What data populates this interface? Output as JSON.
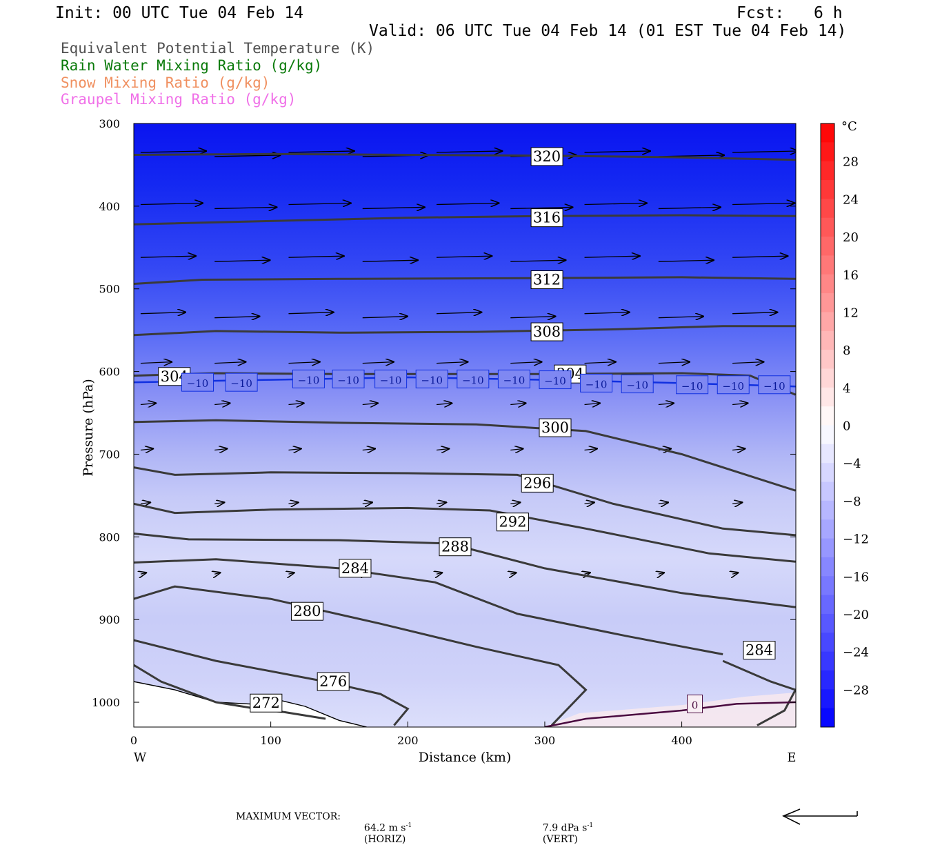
{
  "header": {
    "init": "Init: 00 UTC Tue 04 Feb 14",
    "fcst_label": "Fcst:",
    "fcst_value": "6 h",
    "valid": "Valid: 06 UTC Tue 04 Feb 14 (01 EST Tue 04 Feb 14)"
  },
  "legend": [
    {
      "text": "Equivalent Potential Temperature (K)",
      "color": "#505050"
    },
    {
      "text": "Rain Water Mixing Ratio (g/kg)",
      "color": "#0a7a0a"
    },
    {
      "text": "Snow Mixing Ratio (g/kg)",
      "color": "#f09060"
    },
    {
      "text": "Graupel Mixing Ratio (g/kg)",
      "color": "#f070e8"
    }
  ],
  "footer": {
    "max_vector_label": "MAXIMUM VECTOR:",
    "horiz_value": "64.2 m s",
    "horiz_unit": "(HORIZ)",
    "vert_value": "7.9 dPa s",
    "vert_unit": "(VERT)",
    "exponent": "-1"
  },
  "chart_data": {
    "type": "contour",
    "xlabel": "Distance (km)",
    "ylabel": "Pressure (hPa)",
    "xlim": [
      0,
      483
    ],
    "ylim": [
      1030,
      300
    ],
    "x_ticks": [
      0,
      100,
      200,
      300,
      400
    ],
    "y_ticks": [
      300,
      400,
      500,
      600,
      700,
      800,
      900,
      1000
    ],
    "x_end_labels": {
      "left": "W",
      "right": "E"
    },
    "colorbar": {
      "unit": "°C",
      "tick_labels": [
        "28",
        "24",
        "20",
        "16",
        "12",
        "8",
        "4",
        "0",
        "−4",
        "−8",
        "−12",
        "−16",
        "−20",
        "−24",
        "−28"
      ],
      "tick_values": [
        28,
        24,
        20,
        16,
        12,
        8,
        4,
        0,
        -4,
        -8,
        -12,
        -16,
        -20,
        -24,
        -28
      ],
      "range": [
        -32,
        32
      ],
      "colors": {
        "warm": "#ff0000",
        "neutral": "#ffffff",
        "cold": "#0000ff"
      }
    },
    "theta_e_contours": [
      {
        "label": "320",
        "points": [
          [
            0,
            338
          ],
          [
            100,
            337
          ],
          [
            200,
            338
          ],
          [
            300,
            339
          ],
          [
            400,
            341
          ],
          [
            483,
            344
          ]
        ],
        "label_at": [
          290,
          340
        ]
      },
      {
        "label": "316",
        "points": [
          [
            0,
            422
          ],
          [
            100,
            418
          ],
          [
            200,
            414
          ],
          [
            300,
            412
          ],
          [
            400,
            411
          ],
          [
            483,
            412
          ]
        ],
        "label_at": [
          290,
          414
        ]
      },
      {
        "label": "312",
        "points": [
          [
            0,
            494
          ],
          [
            50,
            489
          ],
          [
            150,
            488
          ],
          [
            300,
            487
          ],
          [
            400,
            486
          ],
          [
            483,
            488
          ]
        ],
        "label_at": [
          290,
          489
        ]
      },
      {
        "label": "308",
        "points": [
          [
            0,
            556
          ],
          [
            60,
            551
          ],
          [
            150,
            553
          ],
          [
            250,
            552
          ],
          [
            350,
            549
          ],
          [
            430,
            545
          ],
          [
            483,
            545
          ]
        ],
        "label_at": [
          290,
          552
        ]
      },
      {
        "label": "304",
        "points": [
          [
            0,
            605
          ],
          [
            60,
            602
          ],
          [
            150,
            603
          ],
          [
            250,
            603
          ],
          [
            300,
            603
          ],
          [
            400,
            602
          ],
          [
            450,
            605
          ],
          [
            483,
            628
          ]
        ],
        "label_at": [
          18,
          606
        ]
      },
      {
        "label": "304",
        "points": [],
        "label_at": [
          307,
          603
        ]
      },
      {
        "label": "300",
        "points": [
          [
            0,
            661
          ],
          [
            60,
            659
          ],
          [
            150,
            662
          ],
          [
            250,
            664
          ],
          [
            330,
            672
          ],
          [
            400,
            700
          ],
          [
            483,
            744
          ]
        ],
        "label_at": [
          296,
          668
        ]
      },
      {
        "label": "296",
        "points": [
          [
            0,
            716
          ],
          [
            30,
            725
          ],
          [
            100,
            722
          ],
          [
            200,
            723
          ],
          [
            280,
            725
          ],
          [
            350,
            760
          ],
          [
            430,
            790
          ],
          [
            483,
            798
          ]
        ],
        "label_at": [
          283,
          735
        ]
      },
      {
        "label": "292",
        "points": [
          [
            0,
            760
          ],
          [
            30,
            771
          ],
          [
            100,
            767
          ],
          [
            200,
            765
          ],
          [
            260,
            768
          ],
          [
            330,
            790
          ],
          [
            420,
            820
          ],
          [
            483,
            830
          ]
        ],
        "label_at": [
          265,
          782
        ]
      },
      {
        "label": "288",
        "points": [
          [
            0,
            796
          ],
          [
            40,
            803
          ],
          [
            150,
            804
          ],
          [
            230,
            808
          ],
          [
            300,
            838
          ],
          [
            400,
            868
          ],
          [
            483,
            885
          ]
        ],
        "label_at": [
          223,
          812
        ]
      },
      {
        "label": "284",
        "points": [
          [
            0,
            831
          ],
          [
            60,
            827
          ],
          [
            150,
            838
          ],
          [
            220,
            855
          ],
          [
            280,
            893
          ],
          [
            360,
            920
          ],
          [
            430,
            942
          ]
        ],
        "label_at": [
          150,
          838
        ]
      },
      {
        "label": "284",
        "points": [],
        "label_at": [
          445,
          937
        ]
      },
      {
        "label": "280",
        "points": [
          [
            0,
            875
          ],
          [
            30,
            860
          ],
          [
            100,
            875
          ],
          [
            180,
            905
          ],
          [
            250,
            933
          ],
          [
            310,
            955
          ],
          [
            330,
            985
          ],
          [
            305,
            1028
          ]
        ],
        "label_at": [
          115,
          890
        ]
      },
      {
        "label": "276",
        "points": [
          [
            0,
            925
          ],
          [
            60,
            950
          ],
          [
            140,
            975
          ],
          [
            180,
            990
          ],
          [
            200,
            1008
          ],
          [
            190,
            1028
          ]
        ],
        "label_at": [
          134,
          975
        ]
      },
      {
        "label": "272",
        "points": [
          [
            0,
            955
          ],
          [
            20,
            975
          ],
          [
            60,
            1000
          ],
          [
            90,
            1008
          ],
          [
            110,
            1012
          ],
          [
            140,
            1020
          ]
        ],
        "label_at": [
          85,
          1001
        ]
      },
      {
        "label": "284",
        "points": [
          [
            430,
            950
          ],
          [
            465,
            975
          ],
          [
            483,
            985
          ],
          [
            475,
            1010
          ],
          [
            455,
            1028
          ]
        ],
        "label_at": null
      }
    ],
    "isotherms": [
      {
        "label": "−10",
        "points": [
          [
            0,
            613
          ],
          [
            100,
            610
          ],
          [
            200,
            607
          ],
          [
            300,
            610
          ],
          [
            400,
            614
          ],
          [
            483,
            618
          ]
        ],
        "label_positions": [
          [
            35,
            613
          ],
          [
            67,
            613
          ],
          [
            116,
            609
          ],
          [
            145,
            609
          ],
          [
            176,
            609
          ],
          [
            206,
            609
          ],
          [
            236,
            609
          ],
          [
            266,
            609
          ],
          [
            296,
            610
          ],
          [
            326,
            614
          ],
          [
            356,
            615
          ],
          [
            396,
            616
          ],
          [
            426,
            616
          ],
          [
            456,
            616
          ]
        ]
      },
      {
        "label": "0",
        "points": [
          [
            300,
            1030
          ],
          [
            330,
            1020
          ],
          [
            400,
            1010
          ],
          [
            440,
            1002
          ],
          [
            483,
            1000
          ]
        ],
        "label_positions": [
          [
            404,
            1002
          ]
        ]
      }
    ],
    "max_vector": {
      "horiz": 64.2,
      "vert": 7.9
    }
  }
}
